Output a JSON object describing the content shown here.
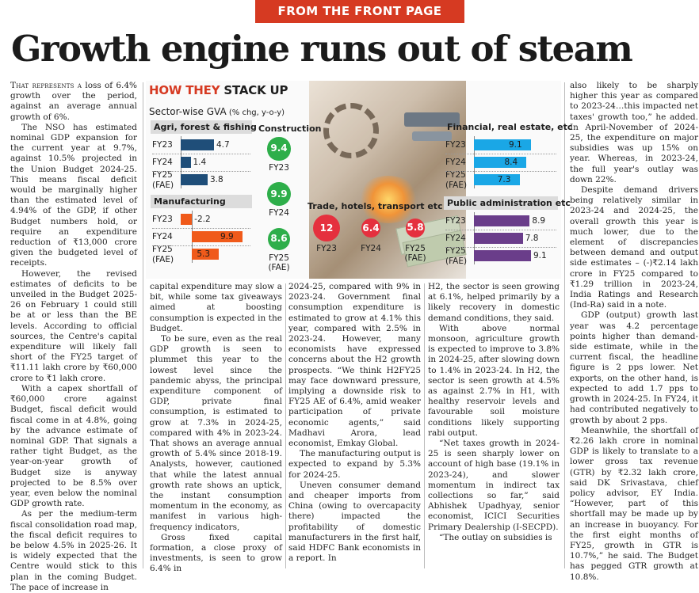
{
  "kicker": "FROM THE FRONT PAGE",
  "headline": "Growth engine runs out of steam",
  "graphic": {
    "title_red": "HOW THEY",
    "title_rest": " STACK UP",
    "subtitle": "Sector-wise GVA",
    "subtitle_units": " (% chg, y-o-y)"
  },
  "chart_data": [
    {
      "type": "bar",
      "title": "Agri, forest & fishing",
      "categories": [
        "FY23",
        "FY24",
        "FY25 (FAE)"
      ],
      "values": [
        4.7,
        1.4,
        3.8
      ],
      "color": "#1f4e79"
    },
    {
      "type": "bar",
      "title": "Manufacturing",
      "categories": [
        "FY23",
        "FY24",
        "FY25 (FAE)"
      ],
      "values": [
        -2.2,
        9.9,
        5.3
      ],
      "color": "#f05a1a"
    },
    {
      "type": "bubble",
      "title": "Construction",
      "categories": [
        "FY23",
        "FY24",
        "FY25 (FAE)"
      ],
      "values": [
        9.4,
        9.9,
        8.6
      ],
      "color": "#2eae4a"
    },
    {
      "type": "bubble",
      "title": "Trade, hotels, transport etc",
      "categories": [
        "FY23",
        "FY24",
        "FY25 (FAE)"
      ],
      "values": [
        12,
        6.4,
        5.8
      ],
      "color": "#e5303e"
    },
    {
      "type": "bar",
      "title": "Financial, real estate, etc",
      "categories": [
        "FY23",
        "FY24",
        "FY25 (FAE)"
      ],
      "values": [
        9.1,
        8.4,
        7.3
      ],
      "color": "#1aa7e6"
    },
    {
      "type": "bar",
      "title": "Public administration etc",
      "categories": [
        "FY23",
        "FY24",
        "FY25 (FAE)"
      ],
      "values": [
        8.9,
        7.8,
        9.1
      ],
      "color": "#6a3d8a"
    }
  ],
  "labels": {
    "fy23": "FY23",
    "fy24": "FY24",
    "fy25": "FY25",
    "fae": "(FAE)"
  },
  "col1": {
    "lead": "That represents a",
    "p1": " loss of 6.4% growth over the period, against an average annual growth of 6%.",
    "p2": "The NSO has estimated nominal GDP expansion for the current year at 9.7%, against 10.5% projected in the Union Budget 2024-25. This means fiscal deficit would be marginally higher than the estimated level of 4.94% of the GDP, if other Budget numbers hold, or require an expenditure reduction of ₹13,000 crore given the budgeted level of receipts.",
    "p3": "However, the revised estimates of deficits to be unveiled in the Budget 2025-26 on February 1 could still be at or less than the BE levels. According to official sources, the Centre's capital expenditure will likely fall short of the FY25 target of ₹11.11 lakh crore by ₹60,000 crore to ₹1 lakh crore.",
    "p4": "With a capex shortfall of ₹60,000 crore against Budget, fiscal deficit would fiscal come in at 4.8%, going by the advance estimate of nominal GDP. That signals a rather tight Budget, as the year-on-year growth of Budget size is anyway projected to be 8.5% over year, even below the nominal GDP growth rate.",
    "p5": "As per the medium-term fiscal consolidation road map, the fiscal deficit requires to be below 4.5% in 2025-26. It is widely expected that the Centre would stick to this plan in the coming Budget. The pace of increase in"
  },
  "col2": {
    "p1": "capital expenditure may slow a bit, while some tax giveaways aimed at boosting consumption is expected in the Budget.",
    "p2": "To be sure, even as the real GDP growth is seen to plummet this year to the lowest level since the pandemic abyss, the principal expenditure component of GDP, private final consumption, is estimated to grow at 7.3% in 2024-25, compared with 4% in 2023-24. That shows an average annual growth of 5.4% since 2018-19. Analysts, however, cautioned that while the latest annual growth rate shows an uptick, the instant consumption momentum in the economy, as manifest in various high-frequency indicators,",
    "p3": "Gross fixed capital formation, a close proxy of investments, is seen to grow 6.4% in"
  },
  "col3": {
    "p1": "2024-25, compared with 9% in 2023-24. Government final consumption expenditure is estimated to grow at 4.1% this year, compared with 2.5% in 2023-24. However, many economists have expressed concerns about the H2 growth prospects. “We think H2FY25 may face downward pressure, implying a downside risk to FY25 AE of 6.4%, amid weaker participation of private economic agents,” said Madhavi Arora, lead economist, Emkay Global.",
    "p2": "The manufacturing output is expected to expand by 5.3% for 2024-25.",
    "p3": "Uneven consumer demand and cheaper imports from China (owing to overcapacity there) impacted the profitability of domestic manufacturers in the first half, said HDFC Bank economists in a report. In"
  },
  "col4": {
    "p1": "H2, the sector is seen growing at 6.1%, helped primarily by a likely recovery in domestic demand conditions, they said.",
    "p2": "With above normal monsoon, agriculture growth is expected to improve to 3.8% in 2024-25, after slowing down to 1.4% in 2023-24. In H2, the sector is seen growth at 4.5% as against 2.7% in H1, with healthy reservoir levels and favourable soil moisture conditions likely supporting rabi output.",
    "p3": "“Net taxes growth in 2024-25 is seen sharply lower on account of high base (19.1% in 2023-24), and slower momentum in indirect tax collections so far,” said Abhishek Upadhyay, senior economist, ICICI Securities Primary Dealership (I-SECPD).",
    "p4": "“The outlay on subsidies is"
  },
  "col5": {
    "p1": "also likely to be sharply higher this year as compared to 2023-24…this impacted net taxes' growth too,” he added. In April-November of 2024-25, the expenditure on major subsidies was up 15% on year. Whereas, in 2023-24, the full year's outlay was down 22%.",
    "p2": "Despite demand drivers being relatively similar in 2023-24 and 2024-25, the overall growth this year is much lower, due to the element of discrepancies between demand and output side estimates – (-)₹2.14 lakh crore in FY25 compared to ₹1.29 trillion in 2023-24, India Ratings and Research (Ind-Ra) said in a note.",
    "p3": "GDP (output) growth last year was 4.2 percentage points higher than demand-side estimate, while in the current fiscal, the headline figure is 2 pps lower. Net exports, on the other hand, is expected to add 1.7 pps to growth in 2024-25. In FY24, it had contributed negatively to growth by about 2 pps.",
    "p4": "Meanwhile, the shortfall of ₹2.26 lakh crore in nominal GDP is likely to translate to a lower gross tax revenue (GTR) by ₹2.32 lakh crore, said DK Srivastava, chief policy advisor, EY India. “However, part of this shortfall may be made up by an increase in buoyancy. For the first eight months of FY25, growth in GTR is 10.7%,” he said. The Budget has pegged GTR growth at 10.8%."
  }
}
